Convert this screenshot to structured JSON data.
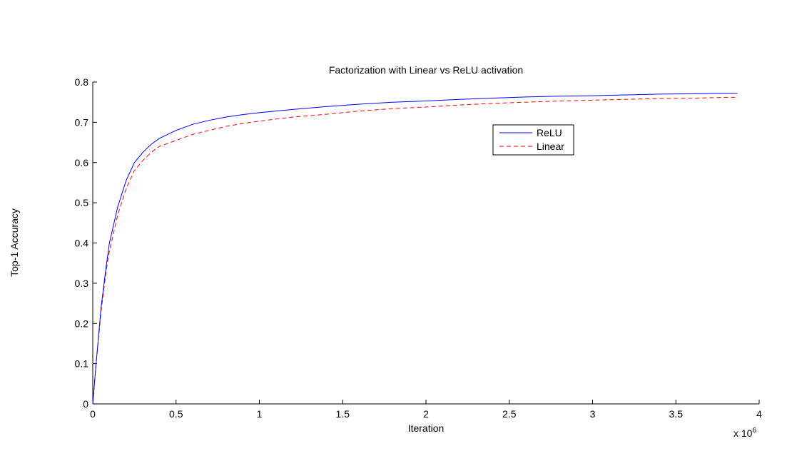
{
  "chart_data": {
    "type": "line",
    "title": "Factorization with Linear vs ReLU activation",
    "xlabel": "Iteration",
    "ylabel": "Top-1 Accuracy",
    "x_multiplier_label": "x 10",
    "x_multiplier_exponent": "6",
    "xlim": [
      0,
      4
    ],
    "ylim": [
      0,
      0.8
    ],
    "x_ticks": [
      "0",
      "0.5",
      "1",
      "1.5",
      "2",
      "2.5",
      "3",
      "3.5",
      "4"
    ],
    "y_ticks": [
      "0",
      "0.1",
      "0.2",
      "0.3",
      "0.4",
      "0.5",
      "0.6",
      "0.7",
      "0.8"
    ],
    "grid": false,
    "legend_position": "upper-right-inside",
    "series": [
      {
        "name": "ReLU",
        "color": "#0000ff",
        "style": "solid",
        "x": [
          0,
          0.02,
          0.05,
          0.08,
          0.1,
          0.15,
          0.2,
          0.25,
          0.3,
          0.35,
          0.4,
          0.5,
          0.6,
          0.7,
          0.8,
          0.9,
          1.0,
          1.2,
          1.4,
          1.6,
          1.8,
          2.0,
          2.2,
          2.4,
          2.6,
          2.8,
          3.0,
          3.2,
          3.4,
          3.6,
          3.8,
          3.87
        ],
        "y": [
          0,
          0.1,
          0.24,
          0.34,
          0.4,
          0.49,
          0.555,
          0.6,
          0.625,
          0.645,
          0.66,
          0.68,
          0.695,
          0.705,
          0.713,
          0.719,
          0.724,
          0.732,
          0.739,
          0.745,
          0.75,
          0.753,
          0.757,
          0.76,
          0.763,
          0.765,
          0.766,
          0.768,
          0.77,
          0.771,
          0.772,
          0.772
        ]
      },
      {
        "name": "Linear",
        "color": "#ff0000",
        "style": "dashed",
        "x": [
          0,
          0.02,
          0.05,
          0.08,
          0.1,
          0.15,
          0.2,
          0.25,
          0.3,
          0.35,
          0.4,
          0.5,
          0.6,
          0.7,
          0.8,
          0.9,
          1.0,
          1.2,
          1.4,
          1.6,
          1.8,
          2.0,
          2.2,
          2.4,
          2.6,
          2.8,
          3.0,
          3.2,
          3.4,
          3.6,
          3.8,
          3.87
        ],
        "y": [
          0,
          0.1,
          0.23,
          0.33,
          0.38,
          0.47,
          0.535,
          0.58,
          0.605,
          0.625,
          0.64,
          0.655,
          0.67,
          0.68,
          0.69,
          0.697,
          0.703,
          0.713,
          0.72,
          0.728,
          0.734,
          0.738,
          0.743,
          0.747,
          0.75,
          0.753,
          0.755,
          0.757,
          0.759,
          0.76,
          0.762,
          0.762
        ]
      }
    ]
  }
}
